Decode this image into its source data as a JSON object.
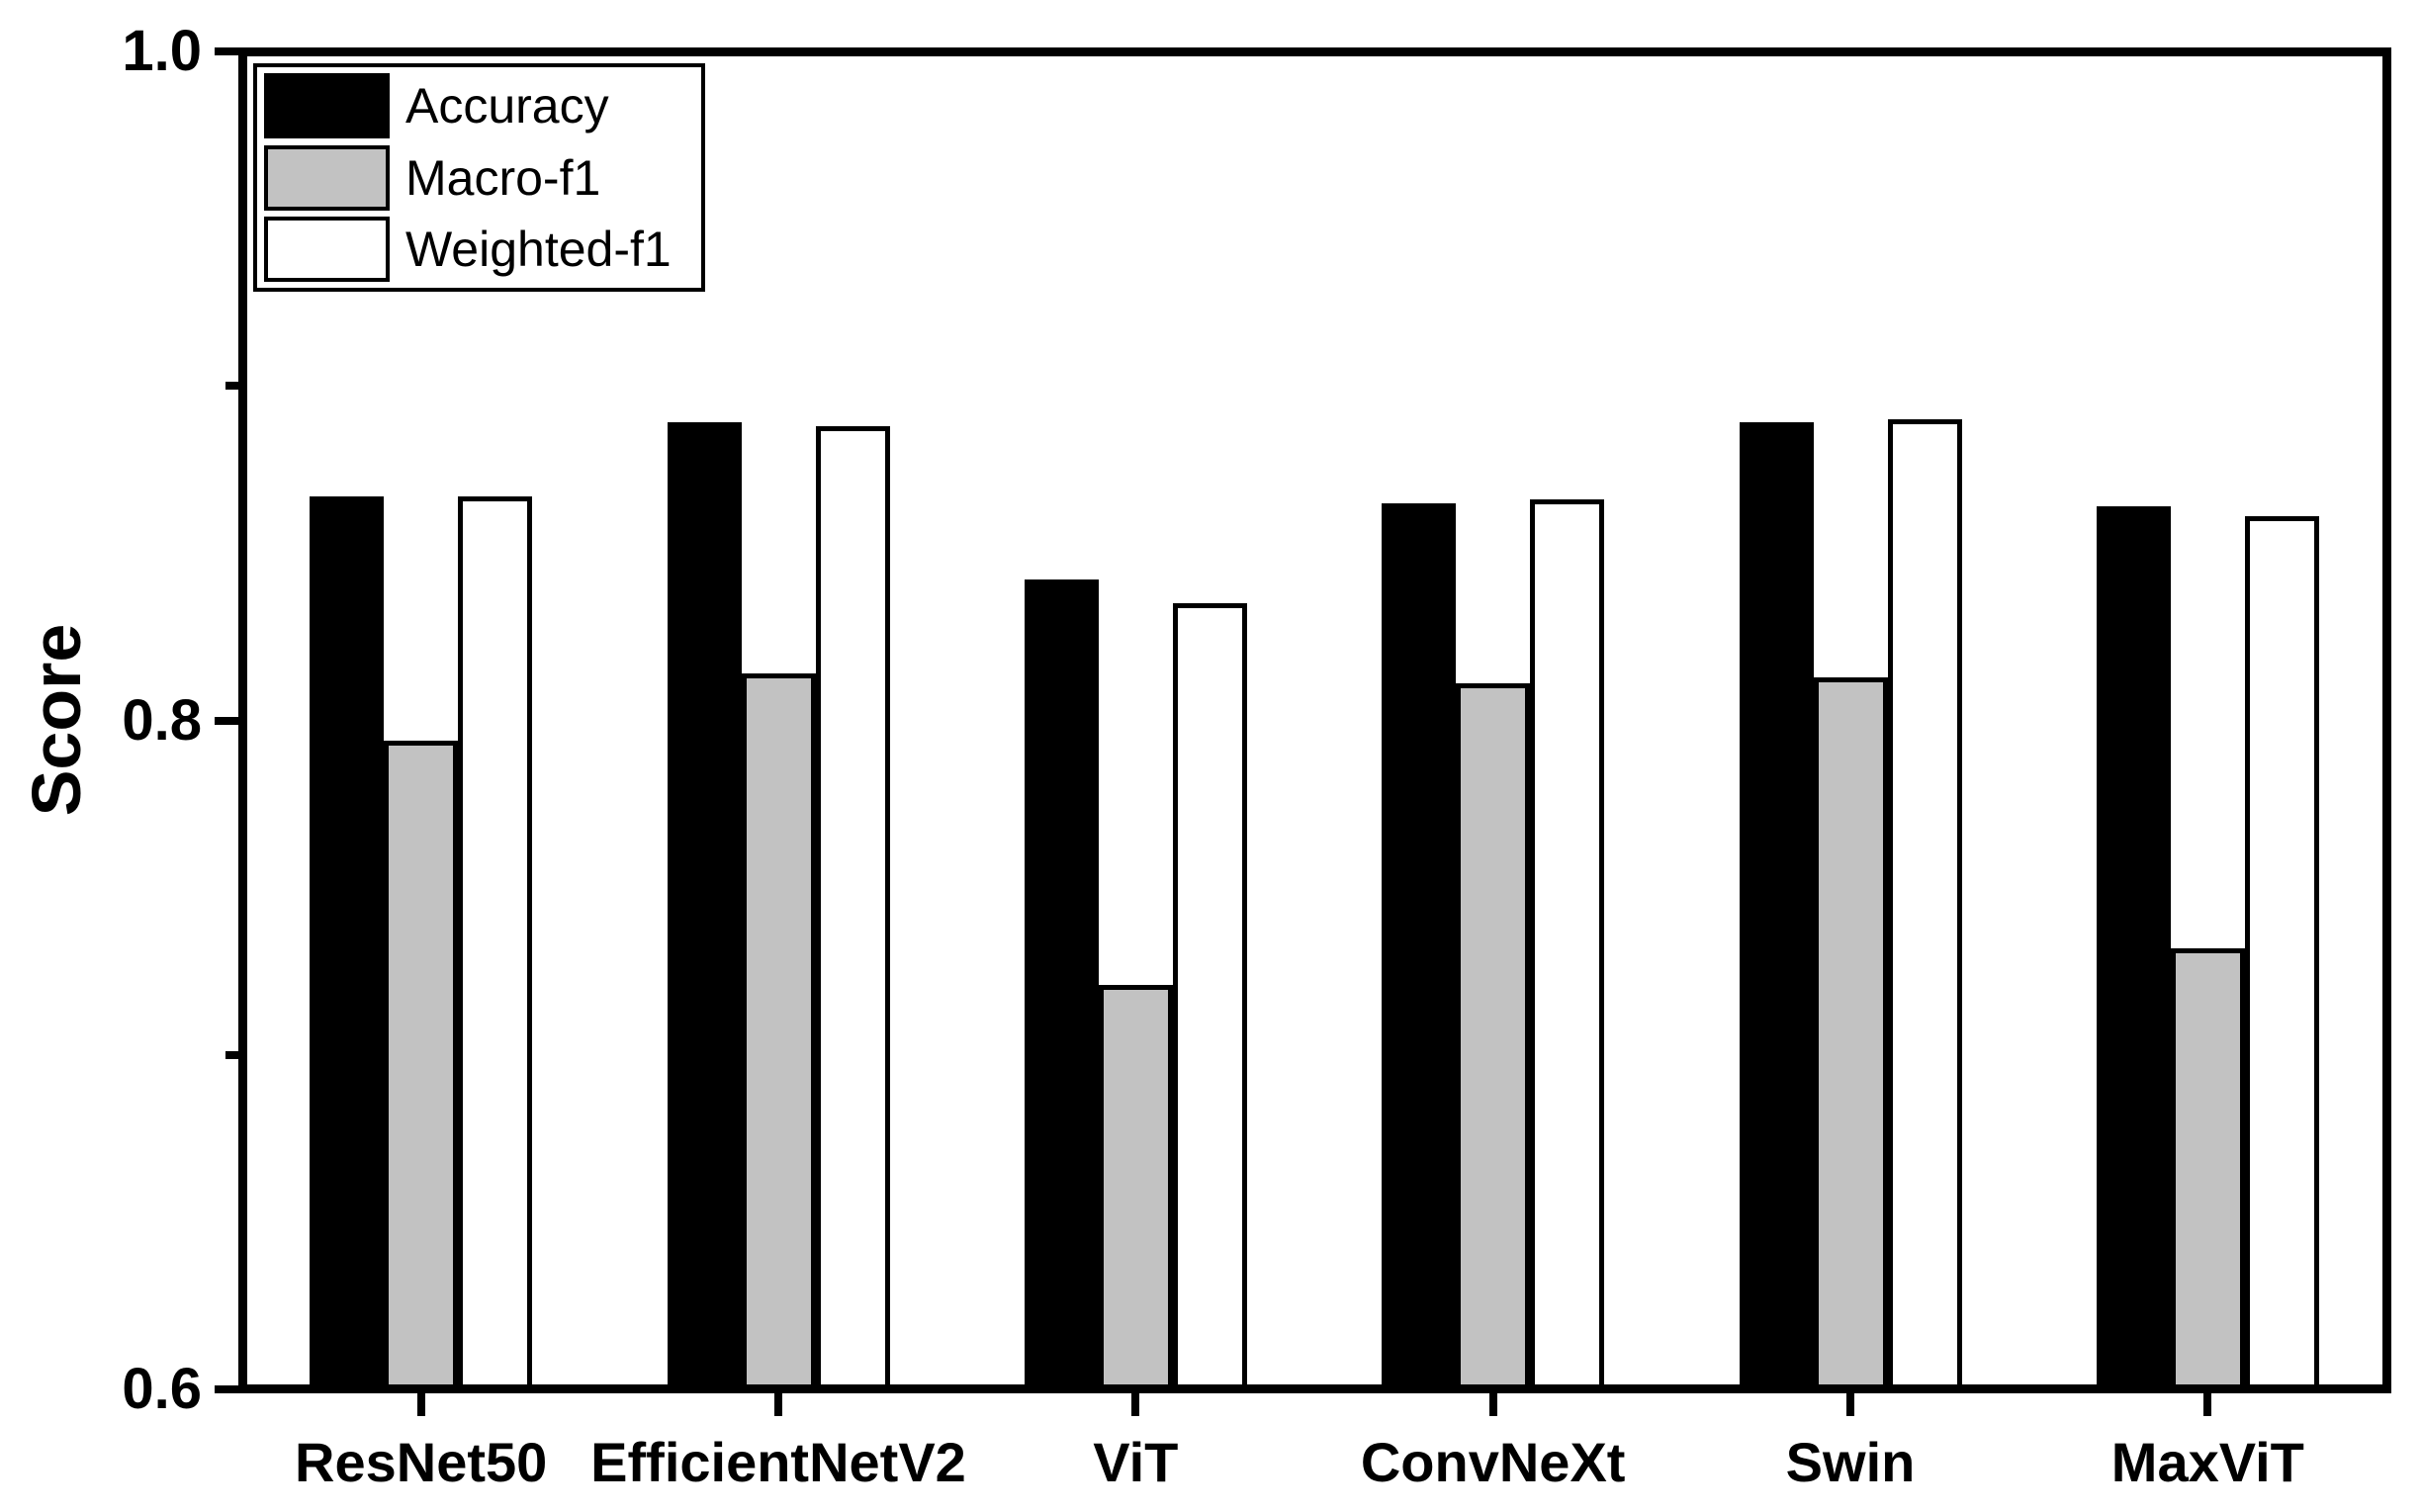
{
  "figure": {
    "ylabel": "Score",
    "background_color": "#ffffff",
    "axis_color": "#000000"
  },
  "legend": {
    "position": "upper-left",
    "items": [
      {
        "label": "Accuracy",
        "color": "#000000"
      },
      {
        "label": "Macro-f1",
        "color": "#c2c2c2"
      },
      {
        "label": "Weighted-f1",
        "color": "#ffffff"
      }
    ]
  },
  "chart_data": {
    "type": "bar",
    "title": "",
    "xlabel": "",
    "ylabel": "Score",
    "categories": [
      "ResNet50",
      "EfficientNetV2",
      "ViT",
      "ConvNeXt",
      "Swin",
      "MaxViT"
    ],
    "series": [
      {
        "name": "Accuracy",
        "color": "#000000",
        "values": [
          0.867,
          0.889,
          0.842,
          0.865,
          0.889,
          0.864
        ]
      },
      {
        "name": "Macro-f1",
        "color": "#c2c2c2",
        "values": [
          0.794,
          0.814,
          0.721,
          0.811,
          0.813,
          0.732
        ]
      },
      {
        "name": "Weighted-f1",
        "color": "#ffffff",
        "values": [
          0.867,
          0.888,
          0.835,
          0.866,
          0.89,
          0.861
        ]
      }
    ],
    "ylim": [
      0.6,
      1.0
    ],
    "yticks_major": [
      {
        "value": 1.0,
        "label": "1.0"
      },
      {
        "value": 0.8,
        "label": "0.8"
      },
      {
        "value": 0.6,
        "label": "0.6"
      }
    ],
    "yticks_minor": [
      0.9,
      0.7
    ],
    "grid": false,
    "bar_edge_color": "#000000",
    "legend_position": "upper-left"
  }
}
